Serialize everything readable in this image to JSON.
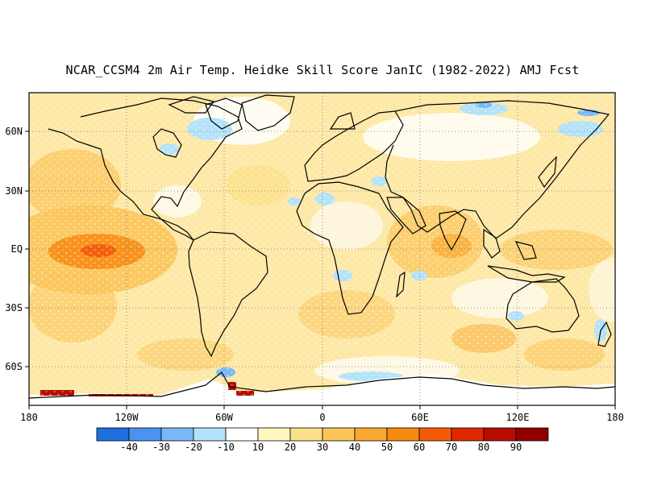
{
  "title": "NCAR_CCSM4 2m Air Temp. Heidke Skill Score JanIC (1982-2022) AMJ Fcst",
  "lat_labels": [
    "60N",
    "30N",
    "EQ",
    "30S",
    "60S"
  ],
  "lat_values": [
    60,
    30,
    0,
    -30,
    -60
  ],
  "lon_labels": [
    "180",
    "120W",
    "60W",
    "0",
    "60E",
    "120E",
    "180"
  ],
  "lon_values": [
    -180,
    -120,
    -60,
    0,
    60,
    120,
    180
  ],
  "lat_range": [
    -80,
    80
  ],
  "lon_range": [
    -180,
    180
  ],
  "colorbar": {
    "labels": [
      "-40",
      "-30",
      "-20",
      "-10",
      "10",
      "20",
      "30",
      "40",
      "50",
      "60",
      "70",
      "80",
      "90"
    ],
    "colors": [
      "#1f6fe0",
      "#4a93f0",
      "#7ab8f7",
      "#b3e3fa",
      "#ffffff",
      "#fff8c0",
      "#fde08a",
      "#fbc55a",
      "#f9a830",
      "#f88a10",
      "#f45a08",
      "#e02800",
      "#b80c00",
      "#900000"
    ]
  }
}
